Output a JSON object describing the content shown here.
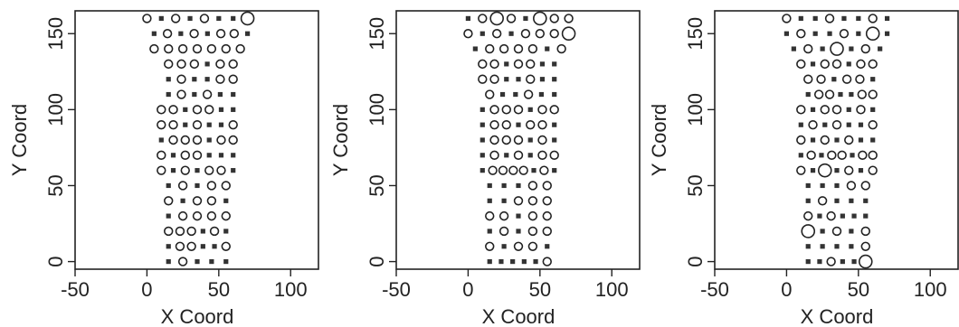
{
  "chart_data": [
    {
      "type": "scatter",
      "xlabel": "X Coord",
      "ylabel": "Y Coord",
      "xlim": [
        -50,
        120
      ],
      "ylim": [
        -5,
        165
      ],
      "xticks": [
        -50,
        0,
        50,
        100
      ],
      "yticks": [
        0,
        50,
        100,
        150
      ],
      "rows": [
        {
          "y": 160,
          "x0": 0,
          "x1": 70,
          "marks": "ososossO"
        },
        {
          "y": 150,
          "x0": 5,
          "x1": 70,
          "marks": "sososoos"
        },
        {
          "y": 140,
          "x0": 5,
          "x1": 65,
          "marks": "ooooooo"
        },
        {
          "y": 130,
          "x0": 15,
          "x1": 60,
          "marks": "ooosoo"
        },
        {
          "y": 120,
          "x0": 15,
          "x1": 60,
          "marks": "sossoo"
        },
        {
          "y": 110,
          "x0": 15,
          "x1": 60,
          "marks": "sososs"
        },
        {
          "y": 100,
          "x0": 10,
          "x1": 60,
          "marks": "oosooss"
        },
        {
          "y": 90,
          "x0": 10,
          "x1": 60,
          "marks": "oososso"
        },
        {
          "y": 80,
          "x0": 10,
          "x1": 60,
          "marks": "sooosoo"
        },
        {
          "y": 70,
          "x0": 10,
          "x1": 60,
          "marks": "osoosss"
        },
        {
          "y": 60,
          "x0": 10,
          "x1": 60,
          "marks": "ososoos"
        },
        {
          "y": 50,
          "x0": 15,
          "x1": 55,
          "marks": "sosoo"
        },
        {
          "y": 40,
          "x0": 15,
          "x1": 55,
          "marks": "osoos"
        },
        {
          "y": 30,
          "x0": 15,
          "x1": 55,
          "marks": "soooo"
        },
        {
          "y": 20,
          "x0": 15,
          "x1": 55,
          "marks": "ooosos"
        },
        {
          "y": 10,
          "x0": 15,
          "x1": 55,
          "marks": "soosso"
        },
        {
          "y": 0,
          "x0": 15,
          "x1": 55,
          "marks": "sosss"
        }
      ]
    },
    {
      "type": "scatter",
      "xlabel": "X Coord",
      "ylabel": "Y Coord",
      "xlim": [
        -50,
        120
      ],
      "ylim": [
        -5,
        165
      ],
      "xticks": [
        -50,
        0,
        50,
        100
      ],
      "yticks": [
        0,
        50,
        100,
        150
      ],
      "rows": [
        {
          "y": 160,
          "x0": 0,
          "x1": 70,
          "marks": "soOosOoo"
        },
        {
          "y": 150,
          "x0": 0,
          "x1": 70,
          "marks": "ososoooO"
        },
        {
          "y": 140,
          "x0": 5,
          "x1": 65,
          "marks": "sooooso"
        },
        {
          "y": 130,
          "x0": 10,
          "x1": 60,
          "marks": "oosooss"
        },
        {
          "y": 120,
          "x0": 10,
          "x1": 60,
          "marks": "oossoss"
        },
        {
          "y": 110,
          "x0": 15,
          "x1": 60,
          "marks": "ossoss"
        },
        {
          "y": 100,
          "x0": 10,
          "x1": 60,
          "marks": "sooosoo"
        },
        {
          "y": 90,
          "x0": 10,
          "x1": 60,
          "marks": "soosoos"
        },
        {
          "y": 80,
          "x0": 10,
          "x1": 60,
          "marks": "sooosos"
        },
        {
          "y": 70,
          "x0": 10,
          "x1": 60,
          "marks": "sososoo"
        },
        {
          "y": 60,
          "x0": 10,
          "x1": 60,
          "marks": "soooosos"
        },
        {
          "y": 50,
          "x0": 15,
          "x1": 55,
          "marks": "sssoo"
        },
        {
          "y": 40,
          "x0": 15,
          "x1": 55,
          "marks": "ssooo"
        },
        {
          "y": 30,
          "x0": 15,
          "x1": 55,
          "marks": "oosoo"
        },
        {
          "y": 20,
          "x0": 15,
          "x1": 55,
          "marks": "sosoo"
        },
        {
          "y": 10,
          "x0": 15,
          "x1": 55,
          "marks": "osoos"
        },
        {
          "y": 0,
          "x0": 15,
          "x1": 55,
          "marks": "ssssso"
        }
      ]
    },
    {
      "type": "scatter",
      "xlabel": "X Coord",
      "ylabel": "Y Coord",
      "xlim": [
        -50,
        120
      ],
      "ylim": [
        -5,
        165
      ],
      "xticks": [
        -50,
        0,
        50,
        100
      ],
      "yticks": [
        0,
        50,
        100,
        150
      ],
      "rows": [
        {
          "y": 160,
          "x0": 0,
          "x1": 70,
          "marks": "ossossos"
        },
        {
          "y": 150,
          "x0": 0,
          "x1": 70,
          "marks": "sossosOs"
        },
        {
          "y": 140,
          "x0": 5,
          "x1": 65,
          "marks": "sosOsos"
        },
        {
          "y": 130,
          "x0": 10,
          "x1": 60,
          "marks": "osoosoo"
        },
        {
          "y": 120,
          "x0": 15,
          "x1": 60,
          "marks": "oosoos"
        },
        {
          "y": 110,
          "x0": 15,
          "x1": 60,
          "marks": "soossoo"
        },
        {
          "y": 100,
          "x0": 10,
          "x1": 60,
          "marks": "osoosos"
        },
        {
          "y": 90,
          "x0": 10,
          "x1": 60,
          "marks": "sososso"
        },
        {
          "y": 80,
          "x0": 10,
          "x1": 60,
          "marks": "osososs"
        },
        {
          "y": 70,
          "x0": 10,
          "x1": 60,
          "marks": "sosoosoo"
        },
        {
          "y": 60,
          "x0": 10,
          "x1": 60,
          "marks": "osOsoso"
        },
        {
          "y": 50,
          "x0": 15,
          "x1": 55,
          "marks": "sssoo"
        },
        {
          "y": 40,
          "x0": 15,
          "x1": 55,
          "marks": "sosss"
        },
        {
          "y": 30,
          "x0": 15,
          "x1": 55,
          "marks": "ososss"
        },
        {
          "y": 20,
          "x0": 15,
          "x1": 55,
          "marks": "Ososo"
        },
        {
          "y": 10,
          "x0": 15,
          "x1": 55,
          "marks": "sssso"
        },
        {
          "y": 0,
          "x0": 15,
          "x1": 55,
          "marks": "ssossO"
        }
      ]
    }
  ]
}
